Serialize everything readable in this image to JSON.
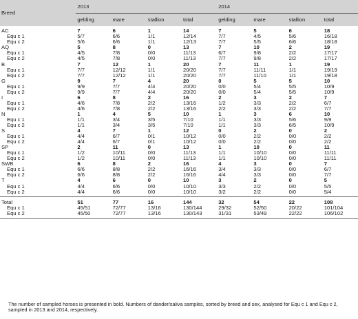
{
  "headers": {
    "breed": "Breed",
    "years": [
      "2013",
      "2014"
    ],
    "cols": [
      "gelding",
      "mare",
      "stallion",
      "total",
      "gelding",
      "mare",
      "stallion",
      "total"
    ]
  },
  "rows": [
    {
      "label": "AC",
      "type": "bold",
      "vals": [
        "7",
        "6",
        "1",
        "14",
        "7",
        "5",
        "6",
        "18"
      ]
    },
    {
      "label": "Equ c 1",
      "type": "sub",
      "vals": [
        "5/7",
        "6/6",
        "1/1",
        "12/14",
        "7/7",
        "4/5",
        "5/6",
        "16/18"
      ]
    },
    {
      "label": "Equ c 2",
      "type": "sub",
      "vals": [
        "5/6",
        "6/6",
        "1/1",
        "12/13",
        "7/7",
        "5/5",
        "6/6",
        "18/18"
      ]
    },
    {
      "label": "AQ",
      "type": "bold",
      "vals": [
        "5",
        "8",
        "0",
        "13",
        "7",
        "10",
        "2",
        "19"
      ]
    },
    {
      "label": "Equ c 1",
      "type": "sub",
      "vals": [
        "4/5",
        "7/8",
        "0/0",
        "11/13",
        "6/7",
        "9/8",
        "2/2",
        "17/17"
      ]
    },
    {
      "label": "Equ c 2",
      "type": "sub",
      "vals": [
        "4/5",
        "7/8",
        "0/0",
        "11/13",
        "7/7",
        "9/8",
        "2/2",
        "17/17"
      ]
    },
    {
      "label": "B",
      "type": "bold",
      "vals": [
        "7",
        "12",
        "1",
        "20",
        "7",
        "11",
        "1",
        "19"
      ]
    },
    {
      "label": "Equ c 1",
      "type": "sub",
      "vals": [
        "7/7",
        "12/12",
        "1/1",
        "20/20",
        "7/7",
        "11/11",
        "1/1",
        "19/19"
      ]
    },
    {
      "label": "Equ c 2",
      "type": "sub",
      "vals": [
        "7/7",
        "12/12",
        "1/1",
        "20/20",
        "7/7",
        "11/10",
        "1/1",
        "19/18"
      ]
    },
    {
      "label": "G",
      "type": "bold",
      "vals": [
        "9",
        "7",
        "4",
        "20",
        "0",
        "5",
        "5",
        "10"
      ]
    },
    {
      "label": "Equ c 1",
      "type": "sub",
      "vals": [
        "9/9",
        "7/7",
        "4/4",
        "20/20",
        "0/0",
        "5/4",
        "5/5",
        "10/9"
      ]
    },
    {
      "label": "Equ c 2",
      "type": "sub",
      "vals": [
        "9/9",
        "7/7",
        "4/4",
        "20/20",
        "0/0",
        "5/4",
        "5/5",
        "10/9"
      ]
    },
    {
      "label": "I",
      "type": "bold",
      "vals": [
        "6",
        "8",
        "2",
        "16",
        "2",
        "3",
        "2",
        "7"
      ]
    },
    {
      "label": "Equ c 1",
      "type": "sub",
      "vals": [
        "4/6",
        "7/8",
        "2/2",
        "13/16",
        "1/2",
        "3/3",
        "2/2",
        "6/7"
      ]
    },
    {
      "label": "Equ c 2",
      "type": "sub",
      "vals": [
        "4/6",
        "7/8",
        "2/2",
        "13/16",
        "2/2",
        "3/3",
        "2/2",
        "7/7"
      ]
    },
    {
      "label": "N",
      "type": "bold",
      "vals": [
        "1",
        "4",
        "5",
        "10",
        "1",
        "3",
        "6",
        "10"
      ]
    },
    {
      "label": "Equ c 1",
      "type": "sub",
      "vals": [
        "1/1",
        "3/4",
        "3/5",
        "7/10",
        "1/1",
        "3/3",
        "5/6",
        "9/9"
      ]
    },
    {
      "label": "Equ c 2",
      "type": "sub",
      "vals": [
        "1/1",
        "3/4",
        "3/5",
        "7/10",
        "1/1",
        "3/3",
        "6/5",
        "10/9"
      ]
    },
    {
      "label": "S",
      "type": "bold",
      "vals": [
        "4",
        "7",
        "1",
        "12",
        "0",
        "2",
        "0",
        "2"
      ]
    },
    {
      "label": "Equ c 1",
      "type": "sub",
      "vals": [
        "4/4",
        "6/7",
        "0/1",
        "10/12",
        "0/0",
        "2/2",
        "0/0",
        "2/2"
      ]
    },
    {
      "label": "Equ c 2",
      "type": "sub",
      "vals": [
        "4/4",
        "6/7",
        "0/1",
        "10/12",
        "0/0",
        "2/2",
        "0/0",
        "2/2"
      ]
    },
    {
      "label": "SP",
      "type": "bold",
      "vals": [
        "2",
        "11",
        "0",
        "13",
        "1",
        "10",
        "0",
        "11"
      ]
    },
    {
      "label": "Equ c 1",
      "type": "sub",
      "vals": [
        "1/2",
        "10/11",
        "0/0",
        "11/13",
        "1/1",
        "10/10",
        "0/0",
        "11/11"
      ]
    },
    {
      "label": "Equ c 2",
      "type": "sub",
      "vals": [
        "1/2",
        "10/11",
        "0/0",
        "11/13",
        "1/1",
        "10/10",
        "0/0",
        "11/11"
      ]
    },
    {
      "label": "SWB",
      "type": "bold",
      "vals": [
        "6",
        "8",
        "2",
        "16",
        "4",
        "3",
        "0",
        "7"
      ]
    },
    {
      "label": "Equ c 1",
      "type": "sub",
      "vals": [
        "6/6",
        "8/8",
        "2/2",
        "16/16",
        "3/4",
        "3/3",
        "0/0",
        "6/7"
      ]
    },
    {
      "label": "Equ c 2",
      "type": "sub",
      "vals": [
        "6/6",
        "8/8",
        "2/2",
        "16/16",
        "4/4",
        "3/3",
        "0/0",
        "7/7"
      ]
    },
    {
      "label": "T",
      "type": "bold",
      "vals": [
        "4",
        "6",
        "0",
        "10",
        "3",
        "2",
        "0",
        "5"
      ]
    },
    {
      "label": "Equ c 1",
      "type": "sub",
      "vals": [
        "4/4",
        "6/6",
        "0/0",
        "10/10",
        "3/3",
        "2/2",
        "0/0",
        "5/5"
      ]
    },
    {
      "label": "Equ c 2",
      "type": "sub",
      "vals": [
        "4/4",
        "6/6",
        "0/0",
        "10/10",
        "3/2",
        "2/2",
        "0/0",
        "5/4"
      ]
    }
  ],
  "total_rows": [
    {
      "label": "Total",
      "type": "bold",
      "vals": [
        "51",
        "77",
        "16",
        "144",
        "32",
        "54",
        "22",
        "108"
      ]
    },
    {
      "label": "Equ c 1",
      "type": "sub",
      "vals": [
        "45/51",
        "72/77",
        "13/16",
        "130/144",
        "29/32",
        "52/50",
        "20/22",
        "101/104"
      ]
    },
    {
      "label": "Equ c 2",
      "type": "sub",
      "vals": [
        "45/50",
        "72/77",
        "13/16",
        "130/143",
        "31/31",
        "53/49",
        "22/22",
        "106/102"
      ]
    }
  ],
  "footnote": "The number of sampled horses is presented in bold. Numbers of dander/saliva samples, sorted by breed and sex, analysed for Equ c 1 and Equ c 2, sampled in 2013 and 2014, respectively."
}
